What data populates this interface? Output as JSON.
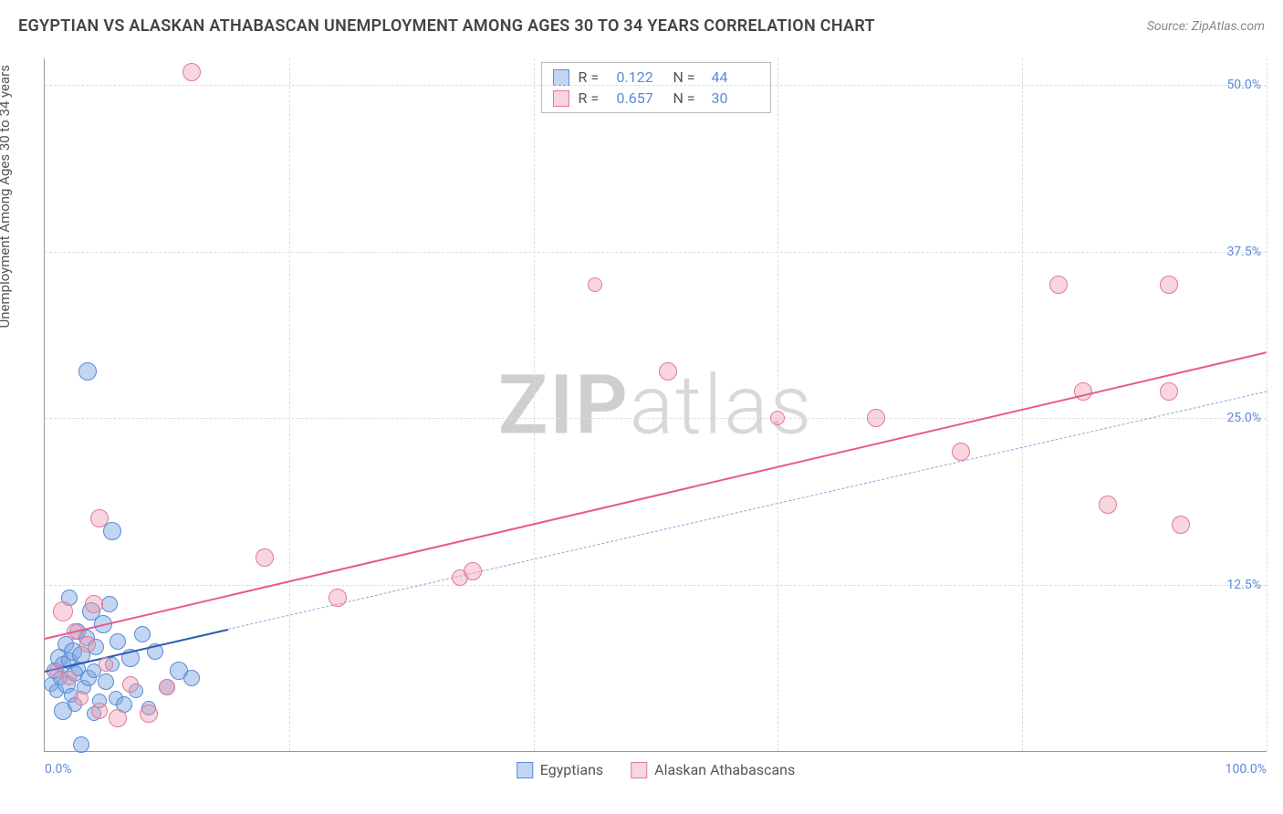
{
  "title": "EGYPTIAN VS ALASKAN ATHABASCAN UNEMPLOYMENT AMONG AGES 30 TO 34 YEARS CORRELATION CHART",
  "source": "Source: ZipAtlas.com",
  "yaxis_label": "Unemployment Among Ages 30 to 34 years",
  "watermark": {
    "part1": "ZIP",
    "part2": "atlas"
  },
  "chart": {
    "type": "scatter",
    "xlim": [
      0,
      100
    ],
    "ylim": [
      0,
      52
    ],
    "xticks": [
      {
        "value": 0,
        "label": "0.0%"
      },
      {
        "value": 100,
        "label": "100.0%"
      }
    ],
    "yticks": [
      {
        "value": 12.5,
        "label": "12.5%"
      },
      {
        "value": 25.0,
        "label": "25.0%"
      },
      {
        "value": 37.5,
        "label": "37.5%"
      },
      {
        "value": 50.0,
        "label": "50.0%"
      }
    ],
    "vgrid": [
      20,
      40,
      60,
      80,
      100
    ],
    "hgrid": [
      12.5,
      25.0,
      37.5,
      50.0
    ],
    "background_color": "#ffffff",
    "grid_color": "#dddddd",
    "axis_color": "#999999",
    "tick_font_color": "#5a8ad8",
    "point_radius_min": 7,
    "point_radius_max": 13,
    "series": [
      {
        "name": "Egyptians",
        "color_fill": "rgba(120,165,225,0.45)",
        "color_stroke": "#5a8ad8",
        "r": 0.122,
        "n": 44,
        "trend": {
          "x1": 0,
          "y1": 6.0,
          "x2": 100,
          "y2": 27.0,
          "solid_until_x": 15,
          "solid_color": "#2a5db0",
          "dashed_color": "#8aa9d8"
        },
        "points": [
          {
            "x": 0.5,
            "y": 5.0,
            "r": 8
          },
          {
            "x": 0.8,
            "y": 6.0,
            "r": 9
          },
          {
            "x": 1.0,
            "y": 4.5,
            "r": 8
          },
          {
            "x": 1.2,
            "y": 7.0,
            "r": 10
          },
          {
            "x": 1.3,
            "y": 5.5,
            "r": 8
          },
          {
            "x": 1.5,
            "y": 6.5,
            "r": 9
          },
          {
            "x": 1.7,
            "y": 8.0,
            "r": 9
          },
          {
            "x": 1.8,
            "y": 5.0,
            "r": 10
          },
          {
            "x": 2.0,
            "y": 6.8,
            "r": 9
          },
          {
            "x": 2.2,
            "y": 4.2,
            "r": 8
          },
          {
            "x": 2.3,
            "y": 7.5,
            "r": 10
          },
          {
            "x": 2.5,
            "y": 5.8,
            "r": 9
          },
          {
            "x": 2.7,
            "y": 9.0,
            "r": 9
          },
          {
            "x": 2.8,
            "y": 6.2,
            "r": 8
          },
          {
            "x": 3.0,
            "y": 7.2,
            "r": 10
          },
          {
            "x": 3.2,
            "y": 4.8,
            "r": 8
          },
          {
            "x": 3.4,
            "y": 8.5,
            "r": 9
          },
          {
            "x": 3.6,
            "y": 5.5,
            "r": 9
          },
          {
            "x": 3.8,
            "y": 10.5,
            "r": 10
          },
          {
            "x": 4.0,
            "y": 6.0,
            "r": 8
          },
          {
            "x": 4.2,
            "y": 7.8,
            "r": 9
          },
          {
            "x": 4.5,
            "y": 3.8,
            "r": 8
          },
          {
            "x": 4.8,
            "y": 9.5,
            "r": 10
          },
          {
            "x": 5.0,
            "y": 5.2,
            "r": 9
          },
          {
            "x": 5.3,
            "y": 11.0,
            "r": 9
          },
          {
            "x": 5.5,
            "y": 6.5,
            "r": 8
          },
          {
            "x": 5.8,
            "y": 4.0,
            "r": 8
          },
          {
            "x": 6.0,
            "y": 8.2,
            "r": 9
          },
          {
            "x": 6.5,
            "y": 3.5,
            "r": 9
          },
          {
            "x": 7.0,
            "y": 7.0,
            "r": 10
          },
          {
            "x": 7.5,
            "y": 4.5,
            "r": 8
          },
          {
            "x": 8.0,
            "y": 8.8,
            "r": 9
          },
          {
            "x": 8.5,
            "y": 3.2,
            "r": 8
          },
          {
            "x": 9.0,
            "y": 7.5,
            "r": 9
          },
          {
            "x": 10.0,
            "y": 4.8,
            "r": 9
          },
          {
            "x": 11.0,
            "y": 6.0,
            "r": 10
          },
          {
            "x": 12.0,
            "y": 5.5,
            "r": 9
          },
          {
            "x": 2.0,
            "y": 11.5,
            "r": 9
          },
          {
            "x": 3.0,
            "y": 0.5,
            "r": 9
          },
          {
            "x": 5.5,
            "y": 16.5,
            "r": 10
          },
          {
            "x": 3.5,
            "y": 28.5,
            "r": 10
          },
          {
            "x": 1.5,
            "y": 3.0,
            "r": 10
          },
          {
            "x": 2.5,
            "y": 3.5,
            "r": 8
          },
          {
            "x": 4.0,
            "y": 2.8,
            "r": 8
          }
        ]
      },
      {
        "name": "Alaskan Athabascans",
        "color_fill": "rgba(240,150,170,0.40)",
        "color_stroke": "#e07a9a",
        "r": 0.657,
        "n": 30,
        "trend": {
          "x1": 0,
          "y1": 8.5,
          "x2": 100,
          "y2": 30.0,
          "solid_until_x": 100,
          "solid_color": "#e85a8a",
          "dashed_color": "#e85a8a"
        },
        "points": [
          {
            "x": 1.0,
            "y": 6.0,
            "r": 8
          },
          {
            "x": 1.5,
            "y": 10.5,
            "r": 11
          },
          {
            "x": 2.0,
            "y": 5.5,
            "r": 8
          },
          {
            "x": 2.5,
            "y": 9.0,
            "r": 9
          },
          {
            "x": 3.0,
            "y": 4.0,
            "r": 8
          },
          {
            "x": 3.5,
            "y": 8.0,
            "r": 9
          },
          {
            "x": 4.0,
            "y": 11.0,
            "r": 10
          },
          {
            "x": 4.5,
            "y": 3.0,
            "r": 9
          },
          {
            "x": 5.0,
            "y": 6.5,
            "r": 8
          },
          {
            "x": 6.0,
            "y": 2.5,
            "r": 10
          },
          {
            "x": 7.0,
            "y": 5.0,
            "r": 9
          },
          {
            "x": 8.5,
            "y": 2.8,
            "r": 10
          },
          {
            "x": 10.0,
            "y": 4.8,
            "r": 9
          },
          {
            "x": 4.5,
            "y": 17.5,
            "r": 10
          },
          {
            "x": 12.0,
            "y": 51.0,
            "r": 10
          },
          {
            "x": 18.0,
            "y": 14.5,
            "r": 10
          },
          {
            "x": 24.0,
            "y": 11.5,
            "r": 10
          },
          {
            "x": 34.0,
            "y": 13.0,
            "r": 9
          },
          {
            "x": 35.0,
            "y": 13.5,
            "r": 10
          },
          {
            "x": 45.0,
            "y": 35.0,
            "r": 8
          },
          {
            "x": 51.0,
            "y": 28.5,
            "r": 10
          },
          {
            "x": 60.0,
            "y": 25.0,
            "r": 8
          },
          {
            "x": 68.0,
            "y": 25.0,
            "r": 10
          },
          {
            "x": 75.0,
            "y": 22.5,
            "r": 10
          },
          {
            "x": 83.0,
            "y": 35.0,
            "r": 10
          },
          {
            "x": 85.0,
            "y": 27.0,
            "r": 10
          },
          {
            "x": 87.0,
            "y": 18.5,
            "r": 10
          },
          {
            "x": 92.0,
            "y": 35.0,
            "r": 10
          },
          {
            "x": 92.0,
            "y": 27.0,
            "r": 10
          },
          {
            "x": 93.0,
            "y": 17.0,
            "r": 10
          }
        ]
      }
    ],
    "legend_top": {
      "r_label": "R =",
      "n_label": "N ="
    }
  }
}
